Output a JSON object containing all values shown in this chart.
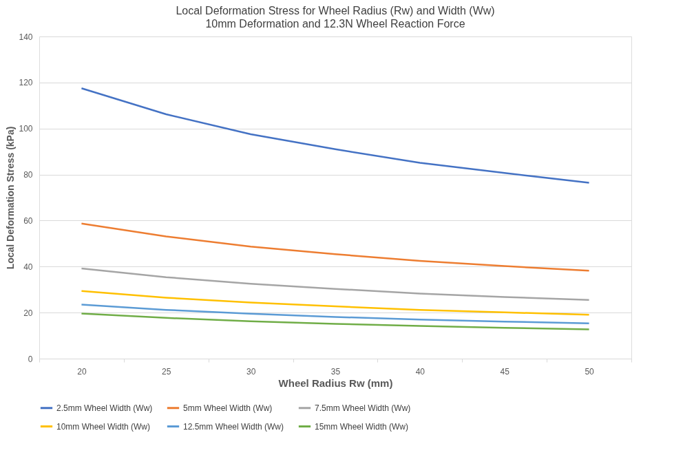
{
  "chart_data": {
    "type": "line",
    "title": "Local Deformation Stress for Wheel Radius (Rw) and Width (Ww)",
    "subtitle": "10mm Deformation and 12.3N Wheel Reaction Force",
    "xlabel": "Wheel Radius Rw (mm)",
    "ylabel": "Local Deformation Stress (kPa)",
    "categories": [
      "20",
      "25",
      "30",
      "35",
      "40",
      "45",
      "50"
    ],
    "series": [
      {
        "name": "2.5mm Wheel Width (Ww)",
        "color": "#4472c4",
        "values": [
          117.5,
          106.2,
          97.5,
          91.0,
          85.1,
          80.7,
          76.4
        ]
      },
      {
        "name": "5mm Wheel Width (Ww)",
        "color": "#ed7d31",
        "values": [
          58.7,
          53.1,
          48.7,
          45.4,
          42.5,
          40.2,
          38.2
        ]
      },
      {
        "name": "7.5mm Wheel Width (Ww)",
        "color": "#a5a5a5",
        "values": [
          39.2,
          35.4,
          32.5,
          30.3,
          28.3,
          26.8,
          25.5
        ]
      },
      {
        "name": "10mm Wheel Width (Ww)",
        "color": "#ffc000",
        "values": [
          29.4,
          26.5,
          24.4,
          22.7,
          21.2,
          20.1,
          19.1
        ]
      },
      {
        "name": "12.5mm Wheel Width (Ww)",
        "color": "#5b9bd5",
        "values": [
          23.5,
          21.2,
          19.5,
          18.1,
          17.0,
          16.1,
          15.3
        ]
      },
      {
        "name": "15mm Wheel Width (Ww)",
        "color": "#70ad47",
        "values": [
          19.6,
          17.7,
          16.2,
          15.1,
          14.2,
          13.4,
          12.7
        ]
      }
    ],
    "ylim": [
      0,
      140
    ],
    "yticks": [
      0,
      20,
      40,
      60,
      80,
      100,
      120,
      140
    ],
    "grid": "y",
    "legend": "bottom",
    "marker": "none",
    "line_style": "solid"
  }
}
